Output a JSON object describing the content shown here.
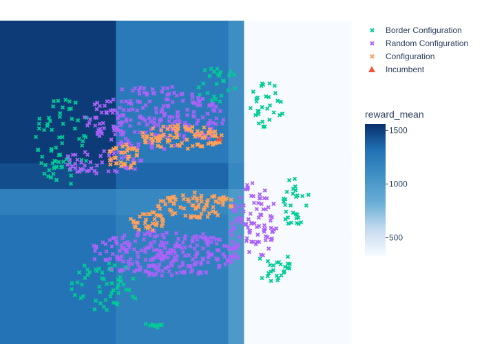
{
  "chart_data": {
    "type": "scatter",
    "title": "",
    "xlabel": "",
    "ylabel": "",
    "xlim": [
      0,
      1
    ],
    "ylim": [
      0,
      1
    ],
    "grid": false,
    "axes_visible": false,
    "legend_placement": "top-right",
    "background": {
      "type": "heatmap",
      "colorscale": "Blues",
      "colorbar": {
        "title": "reward_mean",
        "ticks": [
          500,
          1000,
          1500
        ],
        "tick_labels": [
          "500",
          "1000",
          "1500"
        ],
        "range": [
          330,
          1560
        ]
      },
      "x_edges": [
        0,
        0.33,
        0.65,
        0.695,
        1.0
      ],
      "y_edges": [
        0,
        0.4,
        0.48,
        0.56,
        1.0
      ],
      "z": [
        [
          1300,
          1200,
          1000,
          320
        ],
        [
          1200,
          1150,
          1000,
          320
        ],
        [
          1450,
          1350,
          1150,
          320
        ],
        [
          1520,
          1250,
          1100,
          320
        ]
      ]
    },
    "series": [
      {
        "name": "Border Configuration",
        "marker": "x",
        "color": "#00cc96",
        "clusters": [
          {
            "cx": 0.18,
            "cy": 0.63,
            "rx": 0.08,
            "ry": 0.14,
            "n": 70
          },
          {
            "cx": 0.62,
            "cy": 0.8,
            "rx": 0.06,
            "ry": 0.06,
            "n": 25
          },
          {
            "cx": 0.76,
            "cy": 0.74,
            "rx": 0.05,
            "ry": 0.07,
            "n": 30
          },
          {
            "cx": 0.84,
            "cy": 0.44,
            "rx": 0.04,
            "ry": 0.08,
            "n": 30
          },
          {
            "cx": 0.78,
            "cy": 0.24,
            "rx": 0.05,
            "ry": 0.05,
            "n": 25
          },
          {
            "cx": 0.3,
            "cy": 0.18,
            "rx": 0.1,
            "ry": 0.08,
            "n": 55
          },
          {
            "cx": 0.44,
            "cy": 0.06,
            "rx": 0.03,
            "ry": 0.01,
            "n": 10
          }
        ]
      },
      {
        "name": "Random Configuration",
        "marker": "x",
        "color": "#ab63fa",
        "clusters": [
          {
            "cx": 0.44,
            "cy": 0.7,
            "rx": 0.2,
            "ry": 0.1,
            "n": 230
          },
          {
            "cx": 0.29,
            "cy": 0.56,
            "rx": 0.12,
            "ry": 0.04,
            "n": 50
          },
          {
            "cx": 0.72,
            "cy": 0.38,
            "rx": 0.07,
            "ry": 0.12,
            "n": 90
          },
          {
            "cx": 0.47,
            "cy": 0.28,
            "rx": 0.22,
            "ry": 0.07,
            "n": 260
          }
        ]
      },
      {
        "name": "Configuration",
        "marker": "x",
        "color": "#ffa15a",
        "clusters": [
          {
            "cx": 0.52,
            "cy": 0.64,
            "rx": 0.12,
            "ry": 0.04,
            "n": 90
          },
          {
            "cx": 0.35,
            "cy": 0.58,
            "rx": 0.05,
            "ry": 0.04,
            "n": 40
          },
          {
            "cx": 0.56,
            "cy": 0.43,
            "rx": 0.11,
            "ry": 0.04,
            "n": 80
          },
          {
            "cx": 0.42,
            "cy": 0.38,
            "rx": 0.05,
            "ry": 0.03,
            "n": 35
          }
        ]
      },
      {
        "name": "Incumbent",
        "marker": "triangle-up",
        "color": "#ef553b",
        "points": [
          {
            "x": 0.625,
            "y": 0.635
          }
        ]
      }
    ]
  }
}
